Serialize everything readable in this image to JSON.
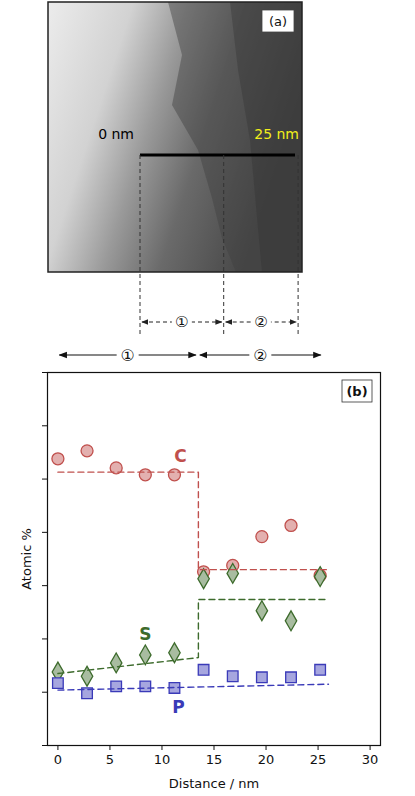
{
  "micrograph": {
    "label": "(a)",
    "scale_bar": {
      "from": 0,
      "to": 25,
      "labels": [
        "0 nm",
        "25 nm"
      ]
    }
  },
  "chart_data": {
    "type": "scatter",
    "panel_label": "(b)",
    "x_label": "Distance / nm",
    "y_label": "Atomic %",
    "xlim": [
      -1,
      31
    ],
    "xticks": [
      0,
      5,
      10,
      15,
      20,
      25,
      30
    ],
    "ylim": [
      0,
      70
    ],
    "yticks": [
      0,
      10,
      20,
      30,
      40,
      50,
      60,
      70
    ],
    "tick_labels": "x",
    "grid": false,
    "regions": [
      {
        "label": "①",
        "from": 0,
        "to": 13.5
      },
      {
        "label": "②",
        "from": 13.5,
        "to": 25.5
      }
    ],
    "series": [
      {
        "name": "C",
        "color": "#c0504d",
        "marker": "circle",
        "x": [
          0,
          2.8,
          5.6,
          8.4,
          11.2,
          14,
          16.8,
          19.6,
          22.4,
          25.2
        ],
        "values": [
          53.8,
          55.3,
          52.1,
          50.8,
          50.8,
          32.6,
          33.8,
          39.2,
          41.3,
          31.9
        ]
      },
      {
        "name": "S",
        "color": "#3d6b2c",
        "marker": "diamond",
        "x": [
          0,
          2.8,
          5.6,
          8.4,
          11.2,
          14,
          16.8,
          19.6,
          22.4,
          25.2
        ],
        "values": [
          13.8,
          13.0,
          15.5,
          17.0,
          17.4,
          31.3,
          32.3,
          25.3,
          23.4,
          31.7
        ]
      },
      {
        "name": "P",
        "color": "#3a3ab8",
        "marker": "square",
        "x": [
          0,
          2.8,
          5.6,
          8.4,
          11.2,
          14,
          16.8,
          19.6,
          22.4,
          25.2
        ],
        "values": [
          11.7,
          9.8,
          11.1,
          11.1,
          10.8,
          14.2,
          13.0,
          12.8,
          12.8,
          14.2
        ]
      },
      {
        "type": "line",
        "line_style": "dashed",
        "color": "#c0504d",
        "x": [
          0,
          13.5,
          13.5,
          26
        ],
        "values": [
          51.3,
          51.3,
          33.0,
          33.0
        ]
      },
      {
        "type": "line",
        "line_style": "dashed",
        "color": "#3d6b2c",
        "x": [
          0,
          13.5,
          13.5,
          26
        ],
        "values": [
          13.5,
          16.5,
          27.4,
          27.4
        ]
      },
      {
        "type": "line",
        "line_style": "dashed",
        "color": "#3a3ab8",
        "x": [
          0,
          26
        ],
        "values": [
          10.4,
          11.5
        ]
      }
    ]
  }
}
